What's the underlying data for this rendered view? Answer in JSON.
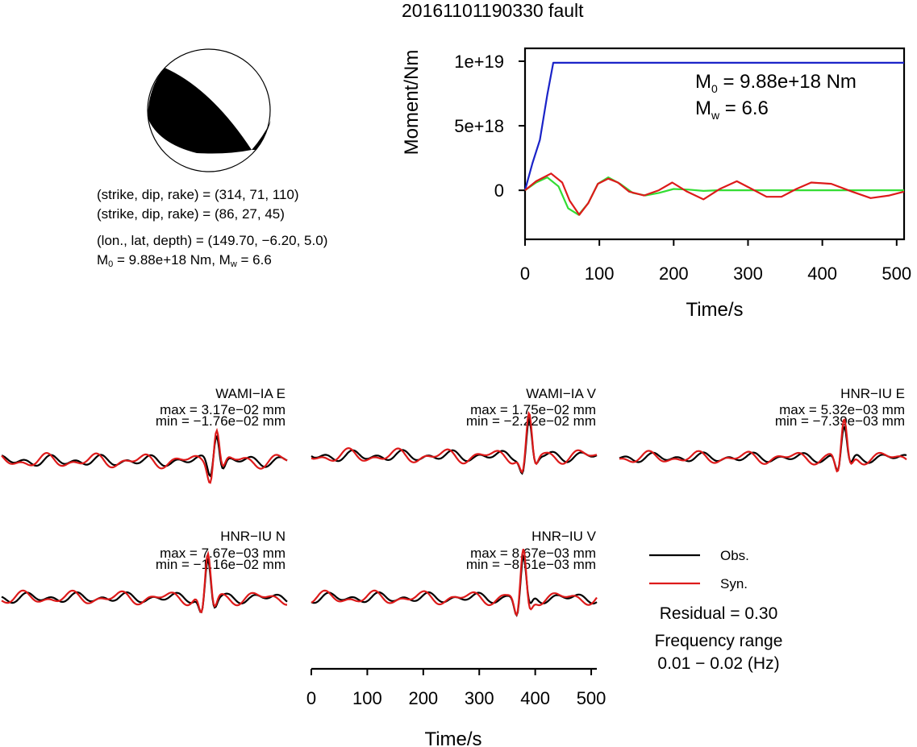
{
  "title": "20161101190330 fault",
  "mechanism": {
    "line1": "(strike, dip, rake) = (314, 71, 110)",
    "line2": "(strike, dip, rake) = (86, 27, 45)",
    "line3": "(lon., lat, depth) = (149.70, −6.20, 5.0)",
    "m0_prefix": "M",
    "m0_sub": "0",
    "m0_value": " = 9.88e+18 Nm, M",
    "mw_sub": "w",
    "mw_value": " = 6.6"
  },
  "chart_data": [
    {
      "type": "line",
      "name": "moment-rate",
      "xlabel": "Time/s",
      "ylabel": "Moment/Nm",
      "xlim": [
        0,
        510
      ],
      "ylim": [
        -3.8e+18,
        1.1e+19
      ],
      "xticks": [
        "0",
        "100",
        "200",
        "300",
        "400",
        "500"
      ],
      "xtick_values": [
        0,
        100,
        200,
        300,
        400,
        500
      ],
      "yticks": [
        "0",
        "5e+18",
        "1e+19"
      ],
      "ytick_values": [
        0,
        5e+18,
        1e+19
      ],
      "annotation": {
        "m0_prefix": "M",
        "m0_sub": "0",
        "m0_value": " = 9.88e+18 Nm",
        "mw_prefix": "M",
        "mw_sub": "w",
        "mw_value": " = 6.6"
      },
      "series": [
        {
          "color": "#1a23c8",
          "x": [
            0,
            10,
            20,
            30,
            38,
            45,
            510
          ],
          "y": [
            0,
            2.1e+18,
            3.9e+18,
            7.4e+18,
            9.88e+18,
            9.88e+18,
            9.88e+18
          ]
        },
        {
          "color": "#33dd33",
          "x": [
            0,
            15,
            30,
            45,
            58,
            72,
            85,
            98,
            112,
            128,
            145,
            162,
            180,
            200,
            220,
            240,
            260,
            300,
            400,
            510
          ],
          "y": [
            0,
            6e+17,
            1e+18,
            3e+17,
            -1.4e+18,
            -1.9e+18,
            -1e+18,
            5e+17,
            1e+18,
            5e+17,
            -2e+17,
            -4e+17,
            -2e+17,
            1e+17,
            5e+16,
            -5e+16,
            0,
            0,
            0,
            0
          ]
        },
        {
          "color": "#dd1a1a",
          "x": [
            0,
            15,
            35,
            50,
            60,
            73,
            85,
            98,
            112,
            125,
            140,
            160,
            180,
            198,
            218,
            240,
            262,
            285,
            305,
            325,
            345,
            365,
            385,
            412,
            440,
            465,
            490,
            510
          ],
          "y": [
            0,
            7e+17,
            1.3e+18,
            6e+17,
            -8e+17,
            -1.9e+18,
            -1e+18,
            5e+17,
            9e+17,
            6e+17,
            -1e+17,
            -4e+17,
            0,
            6e+17,
            -1e+17,
            -7e+17,
            1e+17,
            7e+17,
            1e+17,
            -5e+17,
            -5e+17,
            1e+17,
            6e+17,
            5e+17,
            -1e+17,
            -6e+17,
            -4e+17,
            -1e+17
          ]
        }
      ]
    }
  ],
  "stations": [
    {
      "name": "WAMI−IA E",
      "max": "max = 3.17e−02 mm",
      "min": "min = −1.76e−02 mm"
    },
    {
      "name": "WAMI−IA V",
      "max": "max = 1.75e−02 mm",
      "min": "min = −2.22e−02 mm"
    },
    {
      "name": "HNR−IU E",
      "max": "max = 5.32e−03 mm",
      "min": "min = −7.39e−03 mm"
    },
    {
      "name": "HNR−IU N",
      "max": "max = 7.67e−03 mm",
      "min": "min = −1.16e−02 mm"
    },
    {
      "name": "HNR−IU V",
      "max": "max = 8.67e−03 mm",
      "min": "min = −8.51e−03 mm"
    }
  ],
  "waveform_axis": {
    "xlabel": "Time/s",
    "xticks": [
      "0",
      "100",
      "200",
      "300",
      "400",
      "500"
    ],
    "xtick_values": [
      0,
      100,
      200,
      300,
      400,
      500
    ],
    "xlim": [
      0,
      510
    ]
  },
  "legend": {
    "obs_label": "Obs.",
    "syn_label": "Syn.",
    "obs_color": "#000000",
    "syn_color": "#dd1a1a"
  },
  "residual": "Residual = 0.30",
  "frequency_label": "Frequency range",
  "frequency_value": "0.01 − 0.02 (Hz)"
}
